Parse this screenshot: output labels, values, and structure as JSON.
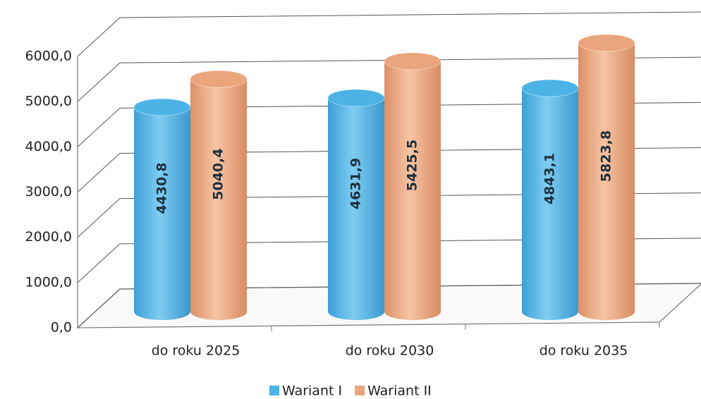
{
  "chart_data": {
    "type": "bar",
    "categories": [
      "do roku 2025",
      "do roku 2030",
      "do roku 2035"
    ],
    "series": [
      {
        "name": "Wariant I",
        "color": "#4bb3e6",
        "values": [
          4430.8,
          4631.9,
          4843.1
        ],
        "value_labels": [
          "4430,8",
          "4631,9",
          "4843,1"
        ]
      },
      {
        "name": "Wariant II",
        "color": "#eaa57c",
        "values": [
          5040.4,
          5425.5,
          5823.8
        ],
        "value_labels": [
          "5040,4",
          "5425,5",
          "5823,8"
        ]
      }
    ],
    "ylim": [
      0,
      6000
    ],
    "yticks": [
      {
        "value": 0,
        "label": "0,0"
      },
      {
        "value": 1000,
        "label": "1000,0"
      },
      {
        "value": 2000,
        "label": "2000,0"
      },
      {
        "value": 3000,
        "label": "3000,0"
      },
      {
        "value": 4000,
        "label": "4000,0"
      },
      {
        "value": 5000,
        "label": "5000,0"
      },
      {
        "value": 6000,
        "label": "6000,0"
      }
    ],
    "grid": true,
    "legend": "bottom"
  }
}
